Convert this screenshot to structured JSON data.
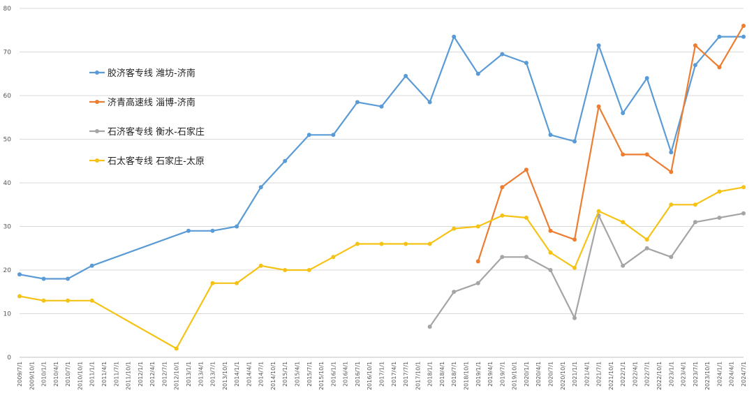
{
  "chart_data": {
    "type": "line",
    "title": "",
    "xlabel": "",
    "ylabel": "",
    "ylim": [
      0,
      80
    ],
    "yticks": [
      0,
      10,
      20,
      30,
      40,
      50,
      60,
      70,
      80
    ],
    "grid": "horizontal",
    "legend_placement": "left",
    "categories": [
      "2009/7/1",
      "2009/10/1",
      "2010/1/1",
      "2010/4/1",
      "2010/7/1",
      "2010/10/1",
      "2011/1/1",
      "2011/4/1",
      "2011/7/1",
      "2011/10/1",
      "2012/1/1",
      "2012/4/1",
      "2012/7/1",
      "2012/10/1",
      "2013/1/1",
      "2013/4/1",
      "2013/7/1",
      "2013/10/1",
      "2014/1/1",
      "2014/4/1",
      "2014/7/1",
      "2014/10/1",
      "2015/1/1",
      "2015/4/1",
      "2015/7/1",
      "2015/10/1",
      "2016/1/1",
      "2016/4/1",
      "2016/7/1",
      "2016/10/1",
      "2017/1/1",
      "2017/4/1",
      "2017/7/1",
      "2017/10/1",
      "2018/1/1",
      "2018/4/1",
      "2018/7/1",
      "2018/10/1",
      "2019/1/1",
      "2019/4/1",
      "2019/7/1",
      "2019/10/1",
      "2020/1/1",
      "2020/4/1",
      "2020/7/1",
      "2020/10/1",
      "2021/1/1",
      "2021/4/1",
      "2021/7/1",
      "2021/10/1",
      "2022/1/1",
      "2022/4/1",
      "2022/7/1",
      "2022/10/1",
      "2023/1/1",
      "2023/4/1",
      "2023/7/1",
      "2023/10/1",
      "2024/1/1",
      "2024/4/1",
      "2024/7/1"
    ],
    "series": [
      {
        "name": "胶济客专线 潍坊-济南",
        "color": "#5b9bd5",
        "points": [
          [
            "2009/7/1",
            19
          ],
          [
            "2010/1/1",
            18
          ],
          [
            "2010/7/1",
            18
          ],
          [
            "2011/1/1",
            21
          ],
          [
            "2013/1/1",
            29
          ],
          [
            "2013/7/1",
            29
          ],
          [
            "2014/1/1",
            30
          ],
          [
            "2014/7/1",
            39
          ],
          [
            "2015/1/1",
            45
          ],
          [
            "2015/7/1",
            51
          ],
          [
            "2016/1/1",
            51
          ],
          [
            "2016/7/1",
            58.5
          ],
          [
            "2017/1/1",
            57.5
          ],
          [
            "2017/7/1",
            64.5
          ],
          [
            "2018/1/1",
            58.5
          ],
          [
            "2018/7/1",
            73.5
          ],
          [
            "2019/1/1",
            65
          ],
          [
            "2019/7/1",
            69.5
          ],
          [
            "2020/1/1",
            67.5
          ],
          [
            "2020/7/1",
            51
          ],
          [
            "2021/1/1",
            49.5
          ],
          [
            "2021/7/1",
            71.5
          ],
          [
            "2022/1/1",
            56
          ],
          [
            "2022/7/1",
            64
          ],
          [
            "2023/1/1",
            47
          ],
          [
            "2023/7/1",
            67
          ],
          [
            "2024/1/1",
            73.5
          ],
          [
            "2024/7/1",
            73.5
          ]
        ]
      },
      {
        "name": "济青高速线 淄博-济南",
        "color": "#ed7d31",
        "points": [
          [
            "2019/1/1",
            22
          ],
          [
            "2019/7/1",
            39
          ],
          [
            "2020/1/1",
            43
          ],
          [
            "2020/7/1",
            29
          ],
          [
            "2021/1/1",
            27
          ],
          [
            "2021/7/1",
            57.5
          ],
          [
            "2022/1/1",
            46.5
          ],
          [
            "2022/7/1",
            46.5
          ],
          [
            "2023/1/1",
            42.5
          ],
          [
            "2023/7/1",
            71.5
          ],
          [
            "2024/1/1",
            66.5
          ],
          [
            "2024/7/1",
            76
          ]
        ]
      },
      {
        "name": "石济客专线 衡水-石家庄",
        "color": "#a5a5a5",
        "points": [
          [
            "2018/1/1",
            7
          ],
          [
            "2018/7/1",
            15
          ],
          [
            "2019/1/1",
            17
          ],
          [
            "2019/7/1",
            23
          ],
          [
            "2020/1/1",
            23
          ],
          [
            "2020/7/1",
            20
          ],
          [
            "2021/1/1",
            9
          ],
          [
            "2021/7/1",
            32.5
          ],
          [
            "2022/1/1",
            21
          ],
          [
            "2022/7/1",
            25
          ],
          [
            "2023/1/1",
            23
          ],
          [
            "2023/7/1",
            31
          ],
          [
            "2024/1/1",
            32
          ],
          [
            "2024/7/1",
            33
          ]
        ]
      },
      {
        "name": "石太客专线 石家庄-太原",
        "color": "#f5c316",
        "points": [
          [
            "2009/7/1",
            14
          ],
          [
            "2010/1/1",
            13
          ],
          [
            "2010/7/1",
            13
          ],
          [
            "2011/1/1",
            13
          ],
          [
            "2012/10/1",
            2
          ],
          [
            "2013/7/1",
            17
          ],
          [
            "2014/1/1",
            17
          ],
          [
            "2014/7/1",
            21
          ],
          [
            "2015/1/1",
            20
          ],
          [
            "2015/7/1",
            20
          ],
          [
            "2016/1/1",
            23
          ],
          [
            "2016/7/1",
            26
          ],
          [
            "2017/1/1",
            26
          ],
          [
            "2017/7/1",
            26
          ],
          [
            "2018/1/1",
            26
          ],
          [
            "2018/7/1",
            29.5
          ],
          [
            "2019/1/1",
            30
          ],
          [
            "2019/7/1",
            32.5
          ],
          [
            "2020/1/1",
            32
          ],
          [
            "2020/7/1",
            24
          ],
          [
            "2021/1/1",
            20.5
          ],
          [
            "2021/7/1",
            33.5
          ],
          [
            "2022/1/1",
            31
          ],
          [
            "2022/7/1",
            27
          ],
          [
            "2023/1/1",
            35
          ],
          [
            "2023/7/1",
            35
          ],
          [
            "2024/1/1",
            38
          ],
          [
            "2024/7/1",
            39
          ]
        ]
      }
    ]
  }
}
